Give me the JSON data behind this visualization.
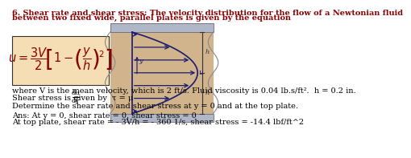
{
  "bg_color": "#ffffff",
  "equation_box_color": "#f5deb3",
  "diagram_box_color": "#d2b48c",
  "diagram_plate_color": "#b0b8c8",
  "title_line1": "6. Shear rate and shear stress: The velocity distribution for the flow of a Newtonian fluid",
  "title_line2": "between two fixed wide, parallel plates is given by the equation",
  "line1_text": "where V is the mean velocity, which is 2 ft/s. Fluid viscosity is 0.04 lb.s/ft².  h = 0.2 in.",
  "line2a_text": "Shear stress is given by  τ = μ",
  "line2_dot": "  .",
  "line3_text": "Determine the shear rate and shear stress at y = 0 and at the top plate.",
  "ans1_text": "Ans: At y = 0, shear rate = 0, shear stress = 0",
  "ans2_text": "At top plate, shear rate = - 3V/h = - 360 1/s, shear stress = -14.4 lbf/ft^2",
  "fs": 7.0,
  "eq_fontsize": 10.5
}
